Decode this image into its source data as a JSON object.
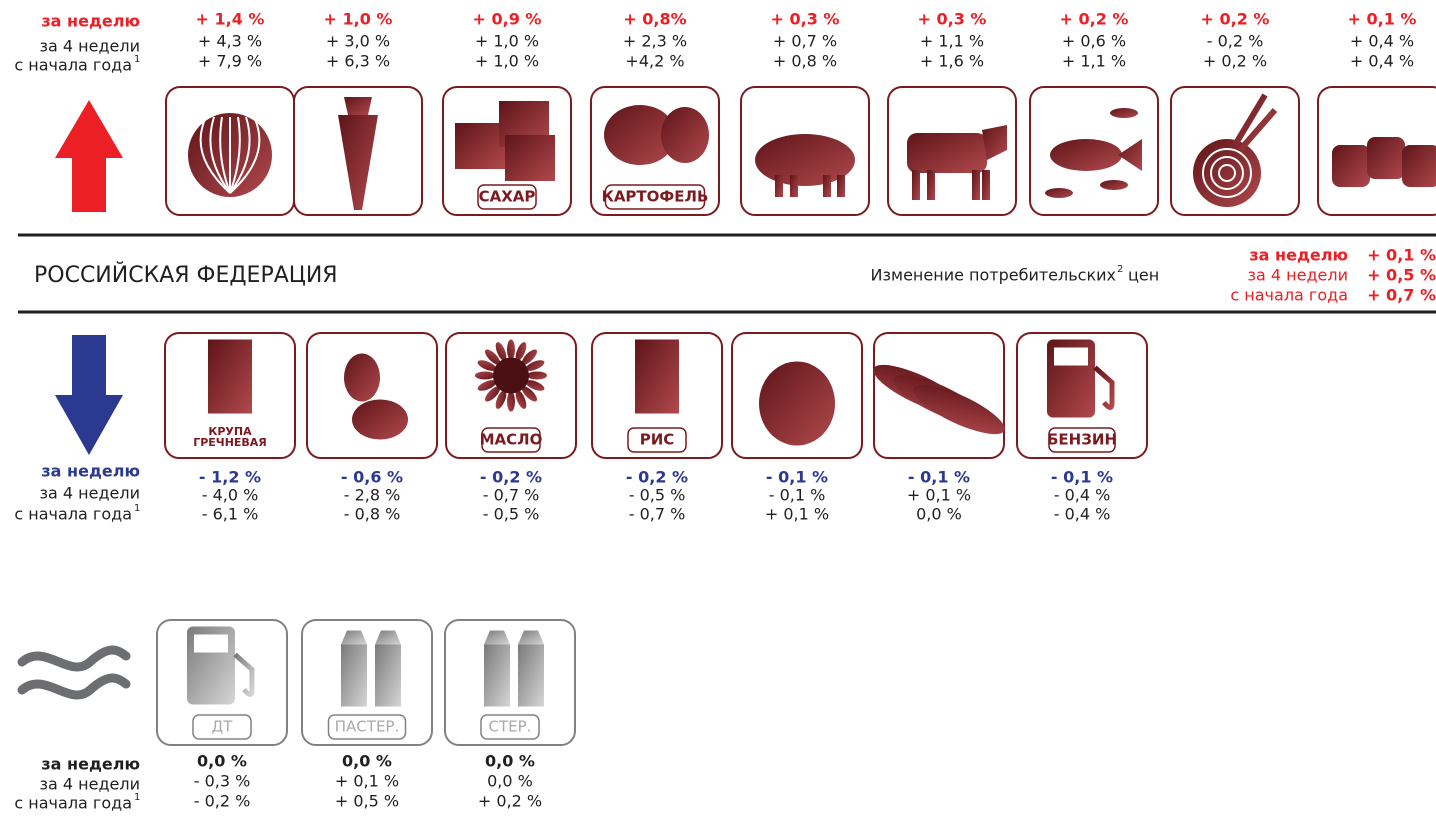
{
  "header": {
    "region": "РОССИЙСКАЯ ФЕДЕРАЦИЯ",
    "subtitle": "Изменение потребительских",
    "subtitle_footnote": "2",
    "subtitle_end": "цен",
    "summary": {
      "period_labels": [
        "за неделю",
        "за 4 недели",
        "с начала года"
      ],
      "values": [
        "+ 0,1 %",
        "+ 0,5 %",
        "+ 0,7 %"
      ]
    }
  },
  "increase": {
    "period_labels": [
      "за неделю",
      "за 4 недели",
      "с начала года"
    ],
    "footnote": "1",
    "items": [
      {
        "week": "+ 1,4 %",
        "four_weeks": "+ 4,3 %",
        "ytd": "+ 7,9 %"
      },
      {
        "week": "+ 1,0 %",
        "four_weeks": "+ 3,0 %",
        "ytd": "+ 6,3 %"
      },
      {
        "label": [
          "САХАР"
        ],
        "week": "+ 0,9 %",
        "four_weeks": "+ 1,0 %",
        "ytd": "+ 1,0 %"
      },
      {
        "label": [
          "КАРТОФЕЛЬ"
        ],
        "week": "+ 0,8%",
        "four_weeks": "+ 2,3 %",
        "ytd": "+4,2 %"
      },
      {
        "week": "+ 0,3 %",
        "four_weeks": "+ 0,7 %",
        "ytd": "+ 0,8 %"
      },
      {
        "week": "+ 0,3 %",
        "four_weeks": "+ 1,1 %",
        "ytd": "+ 1,6 %"
      },
      {
        "week": "+ 0,2 %",
        "four_weeks": "+ 0,6 %",
        "ytd": "+ 1,1 %"
      },
      {
        "week": "+ 0,2 %",
        "four_weeks": "- 0,2 %",
        "ytd": "+ 0,2 %"
      },
      {
        "week": "+ 0,1 %",
        "four_weeks": "+ 0,4 %",
        "ytd": "+ 0,4 %"
      }
    ]
  },
  "decrease": {
    "period_labels": [
      "за неделю",
      "за 4 недели",
      "с начала года"
    ],
    "footnote": "1",
    "items": [
      {
        "label": [
          "КРУПА",
          "ГРЕЧНЕВАЯ"
        ],
        "week": "- 1,2 %",
        "four_weeks": "- 4,0 %",
        "ytd": "- 6,1 %"
      },
      {
        "week": "- 0,6 %",
        "four_weeks": "- 2,8 %",
        "ytd": "- 0,8 %"
      },
      {
        "label": [
          "МАСЛО"
        ],
        "week": "- 0,2 %",
        "four_weeks": "- 0,7 %",
        "ytd": "- 0,5 %"
      },
      {
        "label": [
          "РИС"
        ],
        "week": "- 0,2 %",
        "four_weeks": "- 0,5 %",
        "ytd": "- 0,7 %"
      },
      {
        "week": "- 0,1 %",
        "four_weeks": "- 0,1 %",
        "ytd": "+ 0,1 %"
      },
      {
        "week": "- 0,1 %",
        "four_weeks": "+ 0,1 %",
        "ytd": "0,0 %"
      },
      {
        "label": [
          "БЕНЗИН"
        ],
        "week": "- 0,1 %",
        "four_weeks": "- 0,4 %",
        "ytd": "- 0,4 %"
      }
    ]
  },
  "stable": {
    "period_labels": [
      "за неделю",
      "за 4 недели",
      "с начала года"
    ],
    "footnote": "1",
    "items": [
      {
        "label": [
          "ДТ"
        ],
        "week": "0,0 %",
        "four_weeks": "- 0,3 %",
        "ytd": "- 0,2 %"
      },
      {
        "label": [
          "ПАСТЕР."
        ],
        "week": "0,0 %",
        "four_weeks": "+ 0,1 %",
        "ytd": "+ 0,5 %"
      },
      {
        "label": [
          "СТЕР."
        ],
        "week": "0,0 %",
        "four_weeks": "0,0 %",
        "ytd": "+ 0,2 %"
      }
    ]
  }
}
